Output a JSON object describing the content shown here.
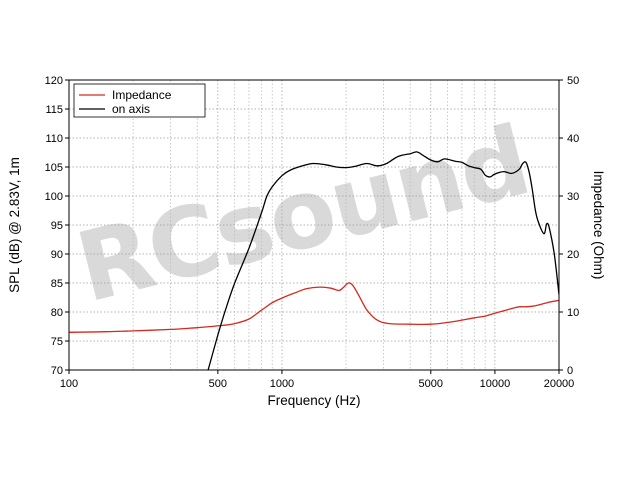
{
  "chart_data": {
    "type": "line",
    "x_scale": "log",
    "xlim": [
      100,
      20000
    ],
    "ylim_left": [
      70,
      120
    ],
    "ylim_right": [
      0,
      50
    ],
    "xlabel": "Frequency (Hz)",
    "ylabel_left": "SPL (dB) @ 2.83V, 1m",
    "ylabel_right": "Impedance (Ohm)",
    "x_ticks": [
      {
        "value": 100,
        "label": "100"
      },
      {
        "value": 500,
        "label": "500"
      },
      {
        "value": 1000,
        "label": "1000"
      },
      {
        "value": 5000,
        "label": "5000"
      },
      {
        "value": 10000,
        "label": "10000"
      },
      {
        "value": 20000,
        "label": "20000"
      }
    ],
    "y_ticks_left": [
      "70",
      "75",
      "80",
      "85",
      "90",
      "95",
      "100",
      "105",
      "110",
      "115",
      "120"
    ],
    "y_ticks_right": [
      "0",
      "10",
      "20",
      "30",
      "40",
      "50"
    ],
    "grid": true,
    "legend_position": "top-left",
    "watermark": "RCsound",
    "series": [
      {
        "name": "Impedance",
        "axis": "right",
        "color": "#d42a1e",
        "points": [
          [
            100,
            6.5
          ],
          [
            150,
            6.6
          ],
          [
            200,
            6.75
          ],
          [
            300,
            7.0
          ],
          [
            400,
            7.3
          ],
          [
            500,
            7.6
          ],
          [
            600,
            8.0
          ],
          [
            700,
            8.8
          ],
          [
            800,
            10.3
          ],
          [
            900,
            11.6
          ],
          [
            1000,
            12.4
          ],
          [
            1150,
            13.3
          ],
          [
            1300,
            14.0
          ],
          [
            1500,
            14.3
          ],
          [
            1700,
            14.1
          ],
          [
            1850,
            13.7
          ],
          [
            1950,
            14.3
          ],
          [
            2050,
            15.0
          ],
          [
            2150,
            14.6
          ],
          [
            2300,
            12.8
          ],
          [
            2500,
            10.4
          ],
          [
            2800,
            8.6
          ],
          [
            3200,
            8.0
          ],
          [
            4000,
            7.9
          ],
          [
            5000,
            7.9
          ],
          [
            6000,
            8.2
          ],
          [
            7000,
            8.6
          ],
          [
            8000,
            9.0
          ],
          [
            9000,
            9.3
          ],
          [
            10000,
            9.8
          ],
          [
            11000,
            10.2
          ],
          [
            12000,
            10.6
          ],
          [
            13000,
            10.9
          ],
          [
            14000,
            10.9
          ],
          [
            15000,
            11.0
          ],
          [
            16000,
            11.2
          ],
          [
            18000,
            11.7
          ],
          [
            20000,
            12.0
          ]
        ]
      },
      {
        "name": "on axis",
        "axis": "left",
        "color": "#000000",
        "points": [
          [
            450,
            70
          ],
          [
            500,
            76
          ],
          [
            550,
            81
          ],
          [
            600,
            85
          ],
          [
            700,
            91
          ],
          [
            800,
            97
          ],
          [
            850,
            100
          ],
          [
            900,
            101.6
          ],
          [
            1000,
            103.5
          ],
          [
            1100,
            104.5
          ],
          [
            1250,
            105.2
          ],
          [
            1400,
            105.6
          ],
          [
            1600,
            105.4
          ],
          [
            1800,
            105.0
          ],
          [
            2000,
            104.9
          ],
          [
            2200,
            105.1
          ],
          [
            2500,
            105.6
          ],
          [
            2800,
            105.2
          ],
          [
            3100,
            105.6
          ],
          [
            3500,
            106.8
          ],
          [
            4000,
            107.3
          ],
          [
            4300,
            107.6
          ],
          [
            4600,
            107.0
          ],
          [
            5000,
            106.2
          ],
          [
            5400,
            105.9
          ],
          [
            5800,
            106.4
          ],
          [
            6500,
            106.0
          ],
          [
            7000,
            105.8
          ],
          [
            7500,
            105.2
          ],
          [
            8000,
            104.9
          ],
          [
            8600,
            104.6
          ],
          [
            9000,
            103.6
          ],
          [
            9500,
            103.3
          ],
          [
            10000,
            103.8
          ],
          [
            11000,
            104.2
          ],
          [
            12000,
            103.9
          ],
          [
            13000,
            104.6
          ],
          [
            13500,
            105.6
          ],
          [
            14000,
            105.8
          ],
          [
            14500,
            104.0
          ],
          [
            15000,
            101.0
          ],
          [
            15500,
            97.5
          ],
          [
            16000,
            95.5
          ],
          [
            17000,
            93.5
          ],
          [
            17500,
            95.2
          ],
          [
            18000,
            94.5
          ],
          [
            19000,
            90.0
          ],
          [
            20000,
            83.0
          ]
        ]
      }
    ]
  }
}
